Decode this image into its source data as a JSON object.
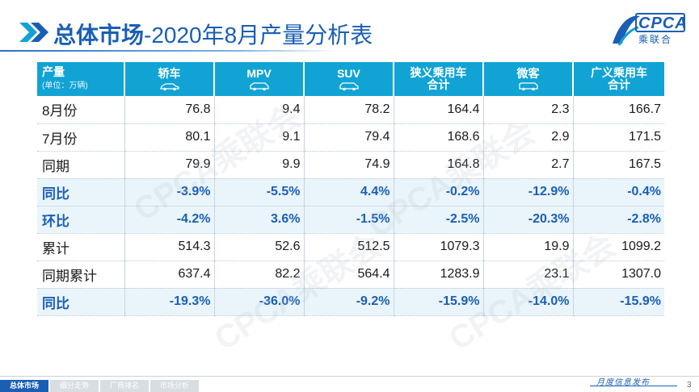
{
  "title": {
    "bold_part": "总体市场",
    "light_part": "-2020年8月产量分析表"
  },
  "logo": {
    "text": "CPCA",
    "sub": "乘联合"
  },
  "watermark": "CPCA乘联会",
  "table": {
    "corner": {
      "label": "产量",
      "unit": "(单位：万辆)"
    },
    "columns": [
      {
        "label": "轿车",
        "icon": "sedan-icon"
      },
      {
        "label": "MPV",
        "icon": "mpv-icon"
      },
      {
        "label": "SUV",
        "icon": "suv-icon"
      },
      {
        "label": "狭义乘用车合计",
        "icon": ""
      },
      {
        "label": "微客",
        "icon": "minivan-icon"
      },
      {
        "label": "广义乘用车合计",
        "icon": ""
      }
    ],
    "rows": [
      {
        "label": "8月份",
        "values": [
          "76.8",
          "9.4",
          "78.2",
          "164.4",
          "2.3",
          "166.7"
        ],
        "pct": false
      },
      {
        "label": "7月份",
        "values": [
          "80.1",
          "9.1",
          "79.4",
          "168.6",
          "2.9",
          "171.5"
        ],
        "pct": false
      },
      {
        "label": "同期",
        "values": [
          "79.9",
          "9.9",
          "74.9",
          "164.8",
          "2.7",
          "167.5"
        ],
        "pct": false
      },
      {
        "label": "同比",
        "values": [
          "-3.9%",
          "-5.5%",
          "4.4%",
          "-0.2%",
          "-12.9%",
          "-0.4%"
        ],
        "pct": true
      },
      {
        "label": "环比",
        "values": [
          "-4.2%",
          "3.6%",
          "-1.5%",
          "-2.5%",
          "-20.3%",
          "-2.8%"
        ],
        "pct": true
      },
      {
        "label": "累计",
        "values": [
          "514.3",
          "52.6",
          "512.5",
          "1079.3",
          "19.9",
          "1099.2"
        ],
        "pct": false
      },
      {
        "label": "同期累计",
        "values": [
          "637.4",
          "82.2",
          "564.4",
          "1283.9",
          "23.1",
          "1307.0"
        ],
        "pct": false
      },
      {
        "label": "同比",
        "values": [
          "-19.3%",
          "-36.0%",
          "-9.2%",
          "-15.9%",
          "-14.0%",
          "-15.9%"
        ],
        "pct": true
      }
    ]
  },
  "footer": {
    "tabs": [
      "总体市场",
      "细分走势",
      "厂商排名",
      "市场分析"
    ],
    "active_tab": 0,
    "slogan": "月度信息发布",
    "page": "3"
  },
  "colors": {
    "header_bg": "#11a3d4",
    "accent": "#1a5fb4",
    "pct_row_bg": "#eaf4fb"
  }
}
